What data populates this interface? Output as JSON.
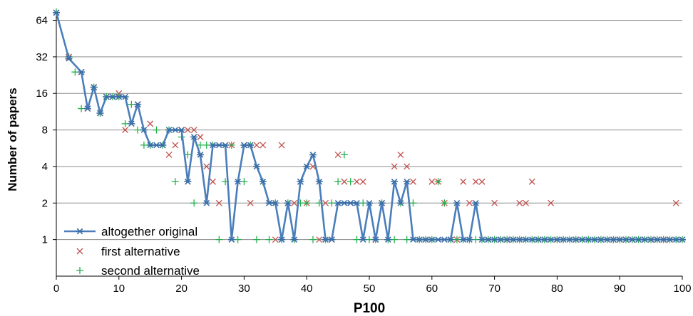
{
  "chart_data": {
    "type": "line",
    "xlabel": "P100",
    "ylabel": "Number of papers",
    "xlim": [
      0,
      100
    ],
    "y_scale": "log2",
    "ylim": [
      0.5,
      80
    ],
    "x_ticks": [
      0,
      10,
      20,
      30,
      40,
      50,
      60,
      70,
      80,
      90,
      100
    ],
    "y_ticks": [
      1,
      2,
      4,
      8,
      16,
      32,
      64
    ],
    "grid": "horizontal",
    "legend_position": "bottom-left",
    "colors": {
      "altogether": "#4a7ebb",
      "first": "#c0504d",
      "second": "#22b14c"
    },
    "series": [
      {
        "name": "altogether original",
        "style": "line-asterisk",
        "x": [
          0,
          2,
          4,
          5,
          6,
          7,
          8,
          9,
          10,
          11,
          12,
          13,
          14,
          15,
          16,
          17,
          18,
          19,
          20,
          21,
          22,
          23,
          24,
          25,
          26,
          27,
          28,
          29,
          30,
          31,
          32,
          33,
          34,
          35,
          36,
          37,
          38,
          39,
          40,
          41,
          42,
          43,
          44,
          45,
          46,
          47,
          48,
          49,
          50,
          51,
          52,
          53,
          54,
          55,
          56,
          57,
          58,
          59,
          60,
          61,
          62,
          63,
          64,
          65,
          66,
          67,
          68,
          69,
          70,
          71,
          72,
          73,
          74,
          75,
          76,
          77,
          78,
          79,
          80,
          81,
          82,
          83,
          84,
          85,
          86,
          87,
          88,
          89,
          90,
          91,
          92,
          93,
          94,
          95,
          96,
          97,
          98,
          99,
          100
        ],
        "y": [
          74,
          31,
          24,
          12,
          18,
          11,
          15,
          15,
          15,
          15,
          9,
          13,
          8,
          6,
          6,
          6,
          8,
          8,
          8,
          3,
          7,
          5,
          2,
          6,
          6,
          6,
          1,
          3,
          6,
          6,
          4,
          3,
          2,
          2,
          1,
          2,
          1,
          3,
          4,
          5,
          3,
          1,
          1,
          2,
          2,
          2,
          2,
          1,
          2,
          1,
          2,
          1,
          3,
          2,
          3,
          1,
          1,
          1,
          1,
          1,
          1,
          1,
          2,
          1,
          1,
          2,
          1,
          1,
          1,
          1,
          1,
          1,
          1,
          1,
          1,
          1,
          1,
          1,
          1,
          1,
          1,
          1,
          1,
          1,
          1,
          1,
          1,
          1,
          1,
          1,
          1,
          1,
          1,
          1,
          1,
          1,
          1,
          1,
          1
        ]
      },
      {
        "name": "first alternative",
        "style": "marker-x",
        "x": [
          0,
          2,
          4,
          5,
          6,
          7,
          8,
          9,
          10,
          11,
          13,
          15,
          17,
          18,
          19,
          20,
          21,
          22,
          23,
          24,
          25,
          26,
          28,
          30,
          31,
          32,
          33,
          34,
          35,
          36,
          37,
          38,
          39,
          40,
          41,
          42,
          43,
          44,
          45,
          46,
          47,
          48,
          49,
          51,
          52,
          54,
          55,
          56,
          57,
          59,
          60,
          61,
          62,
          63,
          64,
          65,
          66,
          67,
          68,
          69,
          70,
          71,
          72,
          73,
          74,
          75,
          76,
          77,
          78,
          79,
          80,
          83,
          87,
          89,
          90,
          91,
          92,
          93,
          94,
          95,
          96,
          97,
          98,
          99,
          100
        ],
        "y": [
          74,
          32,
          24,
          12,
          18,
          11,
          15,
          15,
          16,
          8,
          13,
          9,
          6,
          5,
          6,
          8,
          8,
          8,
          7,
          4,
          3,
          2,
          6,
          6,
          2,
          6,
          6,
          2,
          1,
          6,
          2,
          2,
          3,
          2,
          4,
          1,
          2,
          1,
          5,
          3,
          2,
          3,
          3,
          1,
          2,
          4,
          5,
          4,
          3,
          1,
          3,
          3,
          2,
          1,
          1,
          3,
          2,
          3,
          3,
          1,
          2,
          1,
          1,
          1,
          2,
          2,
          3,
          1,
          1,
          2,
          1,
          1,
          1,
          1,
          1,
          1,
          1,
          1,
          1,
          1,
          1,
          1,
          1,
          2,
          1
        ]
      },
      {
        "name": "second alternative",
        "style": "marker-plus",
        "x": [
          0,
          2,
          3,
          4,
          6,
          7,
          8,
          9,
          10,
          11,
          12,
          13,
          14,
          15,
          16,
          17,
          18,
          19,
          20,
          21,
          22,
          23,
          24,
          25,
          26,
          27,
          28,
          29,
          30,
          31,
          32,
          33,
          34,
          35,
          36,
          37,
          38,
          39,
          40,
          41,
          42,
          43,
          44,
          45,
          46,
          47,
          48,
          49,
          50,
          51,
          52,
          53,
          54,
          55,
          56,
          57,
          58,
          59,
          60,
          61,
          62,
          63,
          64,
          65,
          66,
          67,
          68,
          69,
          70,
          71,
          72,
          73,
          74,
          75,
          76,
          77,
          78,
          79,
          80,
          81,
          82,
          83,
          84,
          85,
          86,
          87,
          88,
          89,
          90,
          91,
          92,
          93,
          94,
          95,
          96,
          97,
          98,
          99,
          100
        ],
        "y": [
          74,
          32,
          24,
          12,
          18,
          11,
          15,
          15,
          15,
          9,
          13,
          8,
          6,
          6,
          8,
          6,
          8,
          3,
          7,
          5,
          2,
          6,
          6,
          6,
          1,
          3,
          6,
          1,
          3,
          6,
          1,
          3,
          1,
          2,
          1,
          2,
          1,
          2,
          2,
          1,
          2,
          1,
          2,
          3,
          5,
          3,
          1,
          2,
          1,
          1,
          2,
          1,
          1,
          2,
          1,
          2,
          1,
          1,
          1,
          3,
          2,
          1,
          1,
          1,
          1,
          1,
          1,
          1,
          1,
          1,
          1,
          1,
          1,
          1,
          1,
          1,
          1,
          1,
          1,
          1,
          1,
          1,
          1,
          1,
          1,
          1,
          1,
          1,
          1,
          1,
          1,
          1,
          1,
          1,
          1,
          1,
          1,
          1,
          1
        ]
      }
    ]
  }
}
